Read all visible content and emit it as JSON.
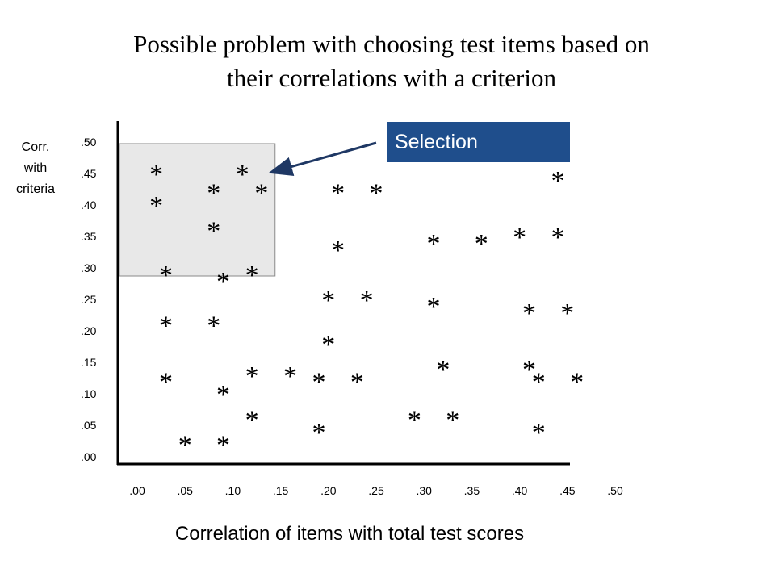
{
  "chart_data": {
    "type": "scatter",
    "title_lines": [
      "Possible problem with choosing test items based on",
      "their correlations with a criterion"
    ],
    "xlabel": "Correlation of items with total test scores",
    "ylabel_lines": [
      "Corr.",
      "with",
      "criteria"
    ],
    "x_ticks": [
      ".00",
      ".05",
      ".10",
      ".15",
      ".20",
      ".25",
      ".30",
      ".35",
      ".40",
      ".45",
      ".50"
    ],
    "y_ticks": [
      ".00",
      ".05",
      ".10",
      ".15",
      ".20",
      ".25",
      ".30",
      ".35",
      ".40",
      ".45",
      ".50"
    ],
    "xlim": [
      0,
      0.5
    ],
    "ylim": [
      0,
      0.5
    ],
    "marker": "*",
    "grid": false,
    "annotation": {
      "label": "Selection",
      "color": "#1f4e8c"
    },
    "selection_region": {
      "x_range": [
        0,
        0.14
      ],
      "y_range": [
        0.3,
        0.5
      ],
      "color": "#e8e8e8"
    },
    "points": [
      {
        "x": 0.02,
        "y": 0.46
      },
      {
        "x": 0.11,
        "y": 0.46
      },
      {
        "x": 0.08,
        "y": 0.43
      },
      {
        "x": 0.13,
        "y": 0.43
      },
      {
        "x": 0.02,
        "y": 0.41
      },
      {
        "x": 0.08,
        "y": 0.37
      },
      {
        "x": 0.03,
        "y": 0.3
      },
      {
        "x": 0.09,
        "y": 0.29
      },
      {
        "x": 0.12,
        "y": 0.3
      },
      {
        "x": 0.21,
        "y": 0.43
      },
      {
        "x": 0.25,
        "y": 0.43
      },
      {
        "x": 0.21,
        "y": 0.34
      },
      {
        "x": 0.2,
        "y": 0.26
      },
      {
        "x": 0.24,
        "y": 0.26
      },
      {
        "x": 0.2,
        "y": 0.19
      },
      {
        "x": 0.03,
        "y": 0.22
      },
      {
        "x": 0.08,
        "y": 0.22
      },
      {
        "x": 0.03,
        "y": 0.13
      },
      {
        "x": 0.12,
        "y": 0.14
      },
      {
        "x": 0.16,
        "y": 0.14
      },
      {
        "x": 0.19,
        "y": 0.13
      },
      {
        "x": 0.23,
        "y": 0.13
      },
      {
        "x": 0.09,
        "y": 0.11
      },
      {
        "x": 0.12,
        "y": 0.07
      },
      {
        "x": 0.19,
        "y": 0.05
      },
      {
        "x": 0.05,
        "y": 0.03
      },
      {
        "x": 0.09,
        "y": 0.03
      },
      {
        "x": 0.31,
        "y": 0.35
      },
      {
        "x": 0.36,
        "y": 0.35
      },
      {
        "x": 0.4,
        "y": 0.36
      },
      {
        "x": 0.44,
        "y": 0.36
      },
      {
        "x": 0.44,
        "y": 0.45
      },
      {
        "x": 0.31,
        "y": 0.25
      },
      {
        "x": 0.41,
        "y": 0.24
      },
      {
        "x": 0.45,
        "y": 0.24
      },
      {
        "x": 0.32,
        "y": 0.15
      },
      {
        "x": 0.41,
        "y": 0.15
      },
      {
        "x": 0.42,
        "y": 0.13
      },
      {
        "x": 0.46,
        "y": 0.13
      },
      {
        "x": 0.29,
        "y": 0.07
      },
      {
        "x": 0.33,
        "y": 0.07
      },
      {
        "x": 0.42,
        "y": 0.05
      }
    ]
  }
}
